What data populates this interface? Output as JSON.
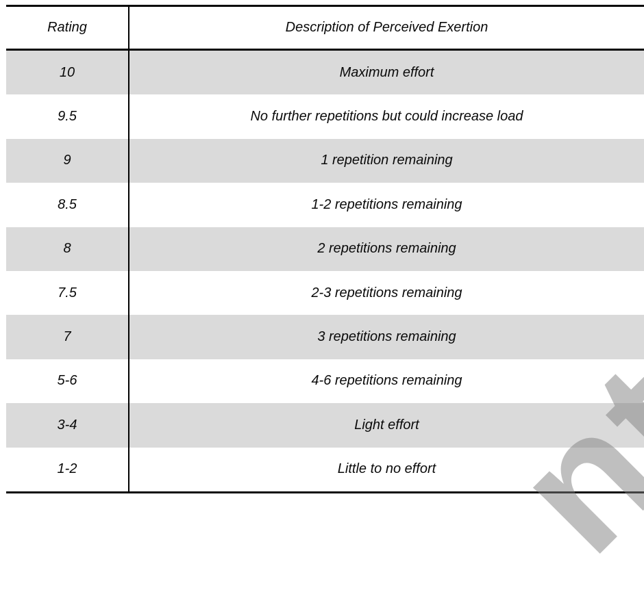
{
  "table": {
    "columns": [
      {
        "label": "Rating"
      },
      {
        "label": "Description of Perceived Exertion"
      }
    ],
    "rows": [
      {
        "rating": "10",
        "description": "Maximum effort"
      },
      {
        "rating": "9.5",
        "description": "No further repetitions but could increase load"
      },
      {
        "rating": "9",
        "description": "1 repetition remaining"
      },
      {
        "rating": "8.5",
        "description": "1-2 repetitions remaining"
      },
      {
        "rating": "8",
        "description": "2 repetitions remaining"
      },
      {
        "rating": "7.5",
        "description": "2-3 repetitions remaining"
      },
      {
        "rating": "7",
        "description": "3 repetitions remaining"
      },
      {
        "rating": "5-6",
        "description": "4-6 repetitions remaining"
      },
      {
        "rating": "3-4",
        "description": "Light effort"
      },
      {
        "rating": "1-2",
        "description": "Little to no effort"
      }
    ]
  },
  "watermark": {
    "visible_fragment": "nt",
    "color": "#c5c5c5"
  },
  "colors": {
    "row_shading": "#dadada",
    "border": "#000000",
    "background": "#ffffff",
    "text": "#0a0a0a"
  }
}
